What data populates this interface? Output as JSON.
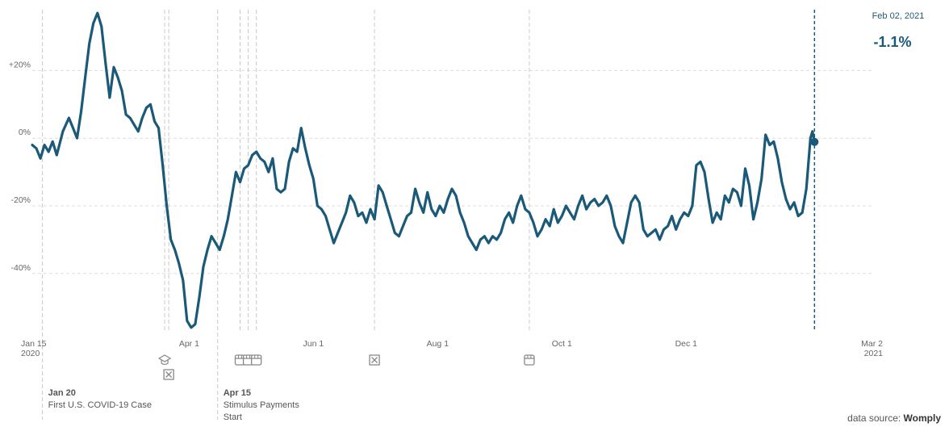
{
  "chart_data": {
    "type": "line",
    "xlabel": "",
    "ylabel": "",
    "x_range": [
      "2020-01-15",
      "2021-03-02"
    ],
    "ylim": [
      -57,
      38
    ],
    "y_ticks": [
      {
        "value": 20,
        "label": "+20%"
      },
      {
        "value": 0,
        "label": "0%"
      },
      {
        "value": -20,
        "label": "-20%"
      },
      {
        "value": -40,
        "label": "-40%"
      }
    ],
    "x_ticks": [
      {
        "date": "2020-01-15",
        "label": "Jan 15",
        "sub": "2020",
        "align": "start"
      },
      {
        "date": "2020-04-01",
        "label": "Apr 1",
        "sub": "",
        "align": "middle"
      },
      {
        "date": "2020-06-01",
        "label": "Jun 1",
        "sub": "",
        "align": "middle"
      },
      {
        "date": "2020-08-01",
        "label": "Aug 1",
        "sub": "",
        "align": "middle"
      },
      {
        "date": "2020-10-01",
        "label": "Oct 1",
        "sub": "",
        "align": "middle"
      },
      {
        "date": "2020-12-01",
        "label": "Dec 1",
        "sub": "",
        "align": "middle"
      },
      {
        "date": "2021-03-02",
        "label": "Mar 2",
        "sub": "2021",
        "align": "end"
      }
    ],
    "grid": "horizontal dashed",
    "line_color": "#1a5a78",
    "series": [
      {
        "points": [
          [
            "2020-01-15",
            -2
          ],
          [
            "2020-01-17",
            -3
          ],
          [
            "2020-01-19",
            -6
          ],
          [
            "2020-01-21",
            -2
          ],
          [
            "2020-01-23",
            -4
          ],
          [
            "2020-01-25",
            -1
          ],
          [
            "2020-01-27",
            -5
          ],
          [
            "2020-01-30",
            2
          ],
          [
            "2020-02-02",
            6
          ],
          [
            "2020-02-04",
            3
          ],
          [
            "2020-02-06",
            0
          ],
          [
            "2020-02-08",
            8
          ],
          [
            "2020-02-10",
            18
          ],
          [
            "2020-02-12",
            28
          ],
          [
            "2020-02-14",
            34
          ],
          [
            "2020-02-16",
            37
          ],
          [
            "2020-02-18",
            33
          ],
          [
            "2020-02-20",
            22
          ],
          [
            "2020-02-22",
            12
          ],
          [
            "2020-02-24",
            21
          ],
          [
            "2020-02-26",
            18
          ],
          [
            "2020-02-28",
            14
          ],
          [
            "2020-03-01",
            7
          ],
          [
            "2020-03-03",
            6
          ],
          [
            "2020-03-05",
            4
          ],
          [
            "2020-03-07",
            2
          ],
          [
            "2020-03-09",
            6
          ],
          [
            "2020-03-11",
            9
          ],
          [
            "2020-03-13",
            10
          ],
          [
            "2020-03-15",
            5
          ],
          [
            "2020-03-17",
            3
          ],
          [
            "2020-03-19",
            -8
          ],
          [
            "2020-03-21",
            -20
          ],
          [
            "2020-03-23",
            -30
          ],
          [
            "2020-03-25",
            -33
          ],
          [
            "2020-03-27",
            -37
          ],
          [
            "2020-03-29",
            -42
          ],
          [
            "2020-03-31",
            -54
          ],
          [
            "2020-04-02",
            -56
          ],
          [
            "2020-04-04",
            -55
          ],
          [
            "2020-04-06",
            -47
          ],
          [
            "2020-04-08",
            -38
          ],
          [
            "2020-04-10",
            -33
          ],
          [
            "2020-04-12",
            -29
          ],
          [
            "2020-04-14",
            -31
          ],
          [
            "2020-04-16",
            -33
          ],
          [
            "2020-04-18",
            -29
          ],
          [
            "2020-04-20",
            -24
          ],
          [
            "2020-04-22",
            -17
          ],
          [
            "2020-04-24",
            -10
          ],
          [
            "2020-04-26",
            -13
          ],
          [
            "2020-04-28",
            -9
          ],
          [
            "2020-04-30",
            -8
          ],
          [
            "2020-05-02",
            -5
          ],
          [
            "2020-05-04",
            -4
          ],
          [
            "2020-05-06",
            -6
          ],
          [
            "2020-05-08",
            -7
          ],
          [
            "2020-05-10",
            -10
          ],
          [
            "2020-05-12",
            -6
          ],
          [
            "2020-05-14",
            -15
          ],
          [
            "2020-05-16",
            -16
          ],
          [
            "2020-05-18",
            -15
          ],
          [
            "2020-05-20",
            -7
          ],
          [
            "2020-05-22",
            -3
          ],
          [
            "2020-05-24",
            -4
          ],
          [
            "2020-05-26",
            3
          ],
          [
            "2020-05-28",
            -3
          ],
          [
            "2020-05-30",
            -8
          ],
          [
            "2020-06-01",
            -12
          ],
          [
            "2020-06-03",
            -20
          ],
          [
            "2020-06-05",
            -21
          ],
          [
            "2020-06-07",
            -23
          ],
          [
            "2020-06-09",
            -27
          ],
          [
            "2020-06-11",
            -31
          ],
          [
            "2020-06-13",
            -28
          ],
          [
            "2020-06-15",
            -25
          ],
          [
            "2020-06-17",
            -22
          ],
          [
            "2020-06-19",
            -17
          ],
          [
            "2020-06-21",
            -19
          ],
          [
            "2020-06-23",
            -23
          ],
          [
            "2020-06-25",
            -22
          ],
          [
            "2020-06-27",
            -25
          ],
          [
            "2020-06-29",
            -21
          ],
          [
            "2020-07-01",
            -24
          ],
          [
            "2020-07-03",
            -14
          ],
          [
            "2020-07-05",
            -16
          ],
          [
            "2020-07-07",
            -20
          ],
          [
            "2020-07-09",
            -24
          ],
          [
            "2020-07-11",
            -28
          ],
          [
            "2020-07-13",
            -29
          ],
          [
            "2020-07-15",
            -26
          ],
          [
            "2020-07-17",
            -23
          ],
          [
            "2020-07-19",
            -22
          ],
          [
            "2020-07-21",
            -15
          ],
          [
            "2020-07-23",
            -19
          ],
          [
            "2020-07-25",
            -22
          ],
          [
            "2020-07-27",
            -16
          ],
          [
            "2020-07-29",
            -21
          ],
          [
            "2020-07-31",
            -23
          ],
          [
            "2020-08-02",
            -20
          ],
          [
            "2020-08-04",
            -22
          ],
          [
            "2020-08-06",
            -18
          ],
          [
            "2020-08-08",
            -15
          ],
          [
            "2020-08-10",
            -17
          ],
          [
            "2020-08-12",
            -22
          ],
          [
            "2020-08-14",
            -25
          ],
          [
            "2020-08-16",
            -29
          ],
          [
            "2020-08-18",
            -31
          ],
          [
            "2020-08-20",
            -33
          ],
          [
            "2020-08-22",
            -30
          ],
          [
            "2020-08-24",
            -29
          ],
          [
            "2020-08-26",
            -31
          ],
          [
            "2020-08-28",
            -29
          ],
          [
            "2020-08-30",
            -30
          ],
          [
            "2020-09-01",
            -28
          ],
          [
            "2020-09-03",
            -24
          ],
          [
            "2020-09-05",
            -22
          ],
          [
            "2020-09-07",
            -25
          ],
          [
            "2020-09-09",
            -20
          ],
          [
            "2020-09-11",
            -17
          ],
          [
            "2020-09-13",
            -21
          ],
          [
            "2020-09-15",
            -22
          ],
          [
            "2020-09-17",
            -25
          ],
          [
            "2020-09-19",
            -29
          ],
          [
            "2020-09-21",
            -27
          ],
          [
            "2020-09-23",
            -24
          ],
          [
            "2020-09-25",
            -26
          ],
          [
            "2020-09-27",
            -21
          ],
          [
            "2020-09-29",
            -25
          ],
          [
            "2020-10-01",
            -23
          ],
          [
            "2020-10-03",
            -20
          ],
          [
            "2020-10-05",
            -22
          ],
          [
            "2020-10-07",
            -24
          ],
          [
            "2020-10-09",
            -20
          ],
          [
            "2020-10-11",
            -17
          ],
          [
            "2020-10-13",
            -21
          ],
          [
            "2020-10-15",
            -19
          ],
          [
            "2020-10-17",
            -18
          ],
          [
            "2020-10-19",
            -20
          ],
          [
            "2020-10-21",
            -19
          ],
          [
            "2020-10-23",
            -17
          ],
          [
            "2020-10-25",
            -20
          ],
          [
            "2020-10-27",
            -26
          ],
          [
            "2020-10-29",
            -29
          ],
          [
            "2020-10-31",
            -31
          ],
          [
            "2020-11-02",
            -25
          ],
          [
            "2020-11-04",
            -19
          ],
          [
            "2020-11-06",
            -17
          ],
          [
            "2020-11-08",
            -19
          ],
          [
            "2020-11-10",
            -27
          ],
          [
            "2020-11-12",
            -29
          ],
          [
            "2020-11-14",
            -28
          ],
          [
            "2020-11-16",
            -27
          ],
          [
            "2020-11-18",
            -30
          ],
          [
            "2020-11-20",
            -27
          ],
          [
            "2020-11-22",
            -26
          ],
          [
            "2020-11-24",
            -23
          ],
          [
            "2020-11-26",
            -27
          ],
          [
            "2020-11-28",
            -24
          ],
          [
            "2020-11-30",
            -22
          ],
          [
            "2020-12-02",
            -23
          ],
          [
            "2020-12-04",
            -20
          ],
          [
            "2020-12-06",
            -8
          ],
          [
            "2020-12-08",
            -7
          ],
          [
            "2020-12-10",
            -10
          ],
          [
            "2020-12-12",
            -18
          ],
          [
            "2020-12-14",
            -25
          ],
          [
            "2020-12-16",
            -22
          ],
          [
            "2020-12-18",
            -24
          ],
          [
            "2020-12-20",
            -17
          ],
          [
            "2020-12-22",
            -19
          ],
          [
            "2020-12-24",
            -15
          ],
          [
            "2020-12-26",
            -16
          ],
          [
            "2020-12-28",
            -20
          ],
          [
            "2020-12-30",
            -9
          ],
          [
            "2021-01-01",
            -14
          ],
          [
            "2021-01-03",
            -24
          ],
          [
            "2021-01-05",
            -19
          ],
          [
            "2021-01-07",
            -12
          ],
          [
            "2021-01-09",
            1
          ],
          [
            "2021-01-11",
            -2
          ],
          [
            "2021-01-13",
            -1
          ],
          [
            "2021-01-15",
            -6
          ],
          [
            "2021-01-17",
            -13
          ],
          [
            "2021-01-19",
            -18
          ],
          [
            "2021-01-21",
            -21
          ],
          [
            "2021-01-23",
            -19
          ],
          [
            "2021-01-25",
            -23
          ],
          [
            "2021-01-27",
            -22
          ],
          [
            "2021-01-29",
            -15
          ],
          [
            "2021-01-31",
            0
          ],
          [
            "2021-02-01",
            2
          ],
          [
            "2021-02-02",
            -1.1
          ]
        ]
      }
    ],
    "readout": {
      "date": "2021-02-02",
      "label": "Feb 02, 2021",
      "value": -1.1,
      "value_label": "-1.1%"
    },
    "events": [
      {
        "date": "2020-01-20",
        "title": "Jan 20",
        "text": "First U.S. COVID-19 Case",
        "text2": "",
        "icon": "none"
      },
      {
        "date": "2020-03-20",
        "title": "",
        "text": "",
        "text2": "",
        "icon": "graduation-cap-icon"
      },
      {
        "date": "2020-03-22",
        "title": "",
        "text": "",
        "text2": "",
        "icon": "closed-box-icon"
      },
      {
        "date": "2020-04-15",
        "title": "Apr 15",
        "text": "Stimulus Payments",
        "text2": "Start",
        "icon": "none"
      },
      {
        "date": "2020-04-26",
        "title": "",
        "text": "",
        "text2": "",
        "icon": "storefront-icon"
      },
      {
        "date": "2020-04-30",
        "title": "",
        "text": "",
        "text2": "",
        "icon": "storefront-icon"
      },
      {
        "date": "2020-05-04",
        "title": "",
        "text": "",
        "text2": "",
        "icon": "storefront-icon"
      },
      {
        "date": "2020-07-01",
        "title": "",
        "text": "",
        "text2": "",
        "icon": "closed-box-icon"
      },
      {
        "date": "2020-09-15",
        "title": "",
        "text": "",
        "text2": "",
        "icon": "storefront-icon"
      }
    ]
  },
  "source": {
    "prefix": "data source:",
    "name": "Womply"
  }
}
